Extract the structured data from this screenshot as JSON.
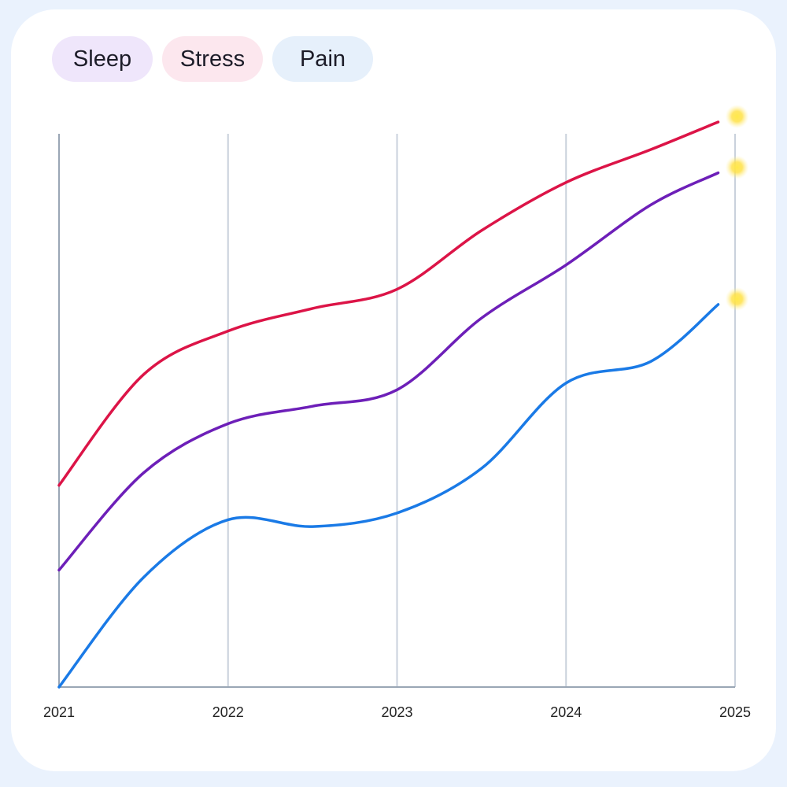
{
  "legend": [
    {
      "label": "Sleep",
      "bg": "#efe6fb"
    },
    {
      "label": "Stress",
      "bg": "#fce7ee"
    },
    {
      "label": "Pain",
      "bg": "#e6f0fb"
    }
  ],
  "chart_data": {
    "type": "line",
    "title": "",
    "xlabel": "",
    "ylabel": "",
    "x": [
      "2021",
      "2022",
      "2023",
      "2024",
      "2025"
    ],
    "ylim": [
      0,
      100
    ],
    "grid": "vertical",
    "legend_position": "top-left",
    "series": [
      {
        "name": "Stress",
        "color": "#dc1447",
        "x": [
          2021,
          2021.5,
          2022,
          2022.5,
          2023,
          2023.5,
          2024,
          2024.5,
          2024.9
        ],
        "values": [
          35.7,
          55.3,
          63.0,
          67.0,
          70.4,
          80.8,
          89.3,
          95.1,
          100
        ]
      },
      {
        "name": "Sleep",
        "color": "#6d1fb8",
        "x": [
          2021,
          2021.5,
          2022,
          2022.5,
          2023,
          2023.5,
          2024,
          2024.5,
          2024.9
        ],
        "values": [
          20.7,
          37.9,
          46.6,
          49.7,
          52.6,
          65.3,
          74.7,
          85.3,
          91.0
        ]
      },
      {
        "name": "Pain",
        "color": "#1a7ae6",
        "x": [
          2021,
          2021.5,
          2022,
          2022.5,
          2023,
          2023.5,
          2024,
          2024.5,
          2024.9
        ],
        "values": [
          0,
          19.4,
          29.6,
          28.4,
          30.8,
          38.7,
          53.8,
          57.6,
          67.7
        ]
      }
    ]
  }
}
